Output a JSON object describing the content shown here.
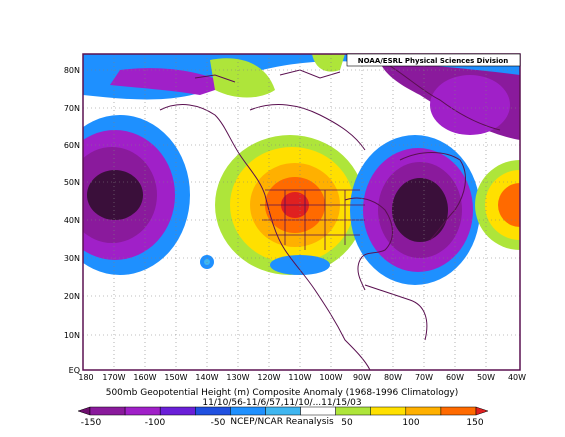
{
  "credit": "NOAA/ESRL Physical Sciences Division",
  "caption": {
    "line1": "500mb Geopotential Height (m) Composite Anomaly (1968-1996 Climatology)",
    "line2": "11/10/56-11/6/57,11/10/...11/15/03",
    "line3": "NCEP/NCAR Reanalysis"
  },
  "lat_ticks": [
    "EQ",
    "10N",
    "20N",
    "30N",
    "40N",
    "50N",
    "60N",
    "70N",
    "80N"
  ],
  "lon_ticks": [
    "180",
    "170W",
    "160W",
    "150W",
    "140W",
    "130W",
    "120W",
    "110W",
    "100W",
    "90W",
    "80W",
    "70W",
    "60W",
    "50W",
    "40W"
  ],
  "colorbar": {
    "labels": [
      "-150",
      "-100",
      "-50",
      "50",
      "100",
      "150"
    ],
    "colors": [
      "#6e0f6e",
      "#8a1a9c",
      "#a020c8",
      "#6a1fd8",
      "#2050e0",
      "#1e90ff",
      "#3fb6f0",
      "#ffffff",
      "#aee53a",
      "#ffe000",
      "#ffb000",
      "#ff6a00",
      "#e02020"
    ]
  },
  "anomaly_colors": {
    "deep_negative": "#3a0f3a",
    "negative": "#8a1a9c",
    "mid_negative": "#a020c8",
    "light_negative": "#1e90ff",
    "weak_positive": "#aee53a",
    "positive": "#ffe000",
    "strong_positive": "#ff6a00",
    "core_positive": "#e02020",
    "coastline": "#5a1050"
  }
}
